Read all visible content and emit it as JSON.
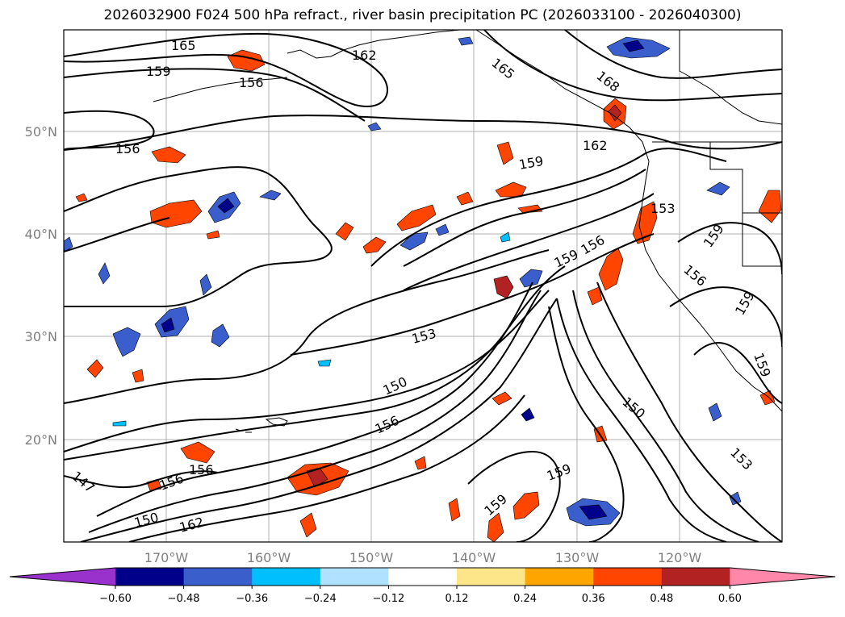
{
  "title": "2026032900 F024 500 hPa refract., river basin precipitation PC (2026033100 - 2026040300)",
  "latitude_labels": [
    "50°N",
    "40°N",
    "30°N",
    "20°N"
  ],
  "longitude_labels": [
    "170°W",
    "160°W",
    "150°W",
    "140°W",
    "130°W",
    "120°W"
  ],
  "colorbar": {
    "ticks": [
      "−0.60",
      "−0.48",
      "−0.36",
      "−0.24",
      "−0.12",
      "0.12",
      "0.24",
      "0.36",
      "0.48",
      "0.60"
    ],
    "colors": [
      "#9932cc",
      "#00008b",
      "#3a5fcd",
      "#00bfff",
      "#b0e2ff",
      "#ffffff",
      "#fde68a",
      "#ffa500",
      "#ff4500",
      "#b22222",
      "#ff88aa"
    ]
  },
  "contour_labels": [
    "165",
    "162",
    "159",
    "156",
    "165",
    "168",
    "162",
    "156",
    "159",
    "153",
    "159",
    "156",
    "156",
    "159",
    "153",
    "159",
    "159",
    "150",
    "156",
    "147",
    "156",
    "156",
    "150",
    "162",
    "150",
    "153",
    "159",
    "159"
  ],
  "colors": {
    "contour": "#000000",
    "grid": "#b0b0b0",
    "coast": "#000000"
  }
}
